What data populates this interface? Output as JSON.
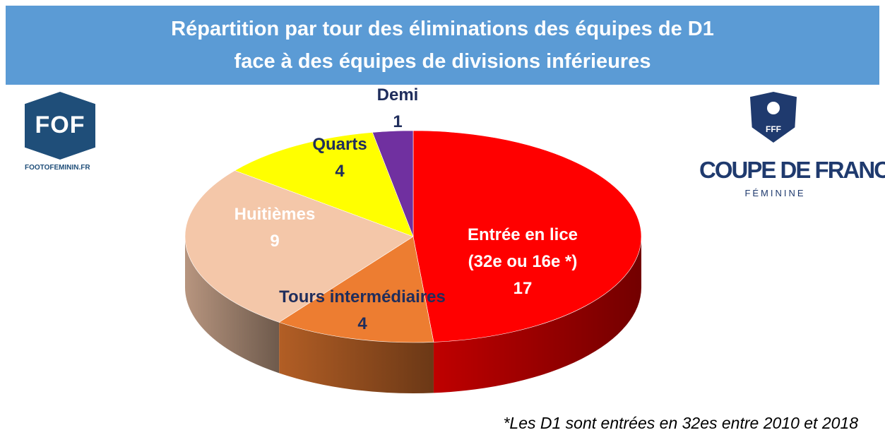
{
  "title": {
    "line1": "Répartition par tour des éliminations des équipes de D1",
    "line2": "face à des équipes de divisions inférieures"
  },
  "logos": {
    "fof": {
      "text": "FOF",
      "site": "FOOTOFEMININ.FR"
    },
    "cdf": {
      "fff": "FFF",
      "name": "COUPE DE FRANCE",
      "sub": "FÉMININE"
    }
  },
  "colors": {
    "banner": "#5b9bd5",
    "entree": "#ff0000",
    "tours": "#ed7d31",
    "huitiemes": "#f4c7a9",
    "quarts": "#ffff00",
    "demi": "#7030a0",
    "label_dark": "#1f2d5c",
    "label_light": "#ffffff"
  },
  "chart_data": {
    "type": "pie",
    "style": "3d",
    "categories": [
      "Entrée en lice",
      "Tours intermédiaires",
      "Huitièmes",
      "Quarts",
      "Demi"
    ],
    "values": [
      17,
      4,
      9,
      4,
      1
    ],
    "slices": [
      {
        "label": "Entrée en lice",
        "sublabel": "(32e ou 16e *)",
        "value": 17,
        "color": "#ff0000",
        "label_color": "#ffffff"
      },
      {
        "label": "Tours intermédiaires",
        "value": 4,
        "color": "#ed7d31",
        "label_color": "#1f2d5c"
      },
      {
        "label": "Huitièmes",
        "value": 9,
        "color": "#f4c7a9",
        "label_color": "#ffffff"
      },
      {
        "label": "Quarts",
        "value": 4,
        "color": "#ffff00",
        "label_color": "#1f2d5c"
      },
      {
        "label": "Demi",
        "value": 1,
        "color": "#7030a0",
        "label_color": "#1f2d5c"
      }
    ]
  },
  "footnote": "*Les D1 sont entrées en 32es entre 2010 et 2018"
}
